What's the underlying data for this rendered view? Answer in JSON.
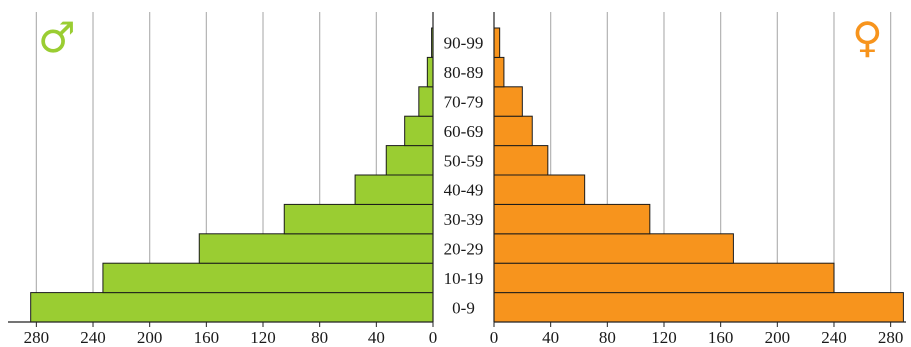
{
  "chart_data": {
    "type": "bar",
    "orientation": "horizontal",
    "layout": "population-pyramid",
    "categories": [
      "0-9",
      "10-19",
      "20-29",
      "30-39",
      "40-49",
      "50-59",
      "60-69",
      "70-79",
      "80-89",
      "90-99"
    ],
    "series": [
      {
        "name": "♂",
        "side": "left",
        "color": "#9acd32",
        "values": [
          284,
          233,
          165,
          105,
          55,
          33,
          20,
          10,
          4,
          1
        ]
      },
      {
        "name": "♀",
        "side": "right",
        "color": "#f7941d",
        "values": [
          289,
          240,
          169,
          110,
          64,
          38,
          27,
          20,
          7,
          4
        ]
      }
    ],
    "x_ticks": [
      0,
      40,
      80,
      120,
      160,
      200,
      240,
      280
    ],
    "xlim": [
      0,
      290
    ],
    "grid": true,
    "title": "",
    "xlabel": "",
    "ylabel": ""
  },
  "legend": {
    "male_symbol": "♂",
    "female_symbol": "♀",
    "male_color": "#9acd32",
    "female_color": "#f7941d"
  }
}
